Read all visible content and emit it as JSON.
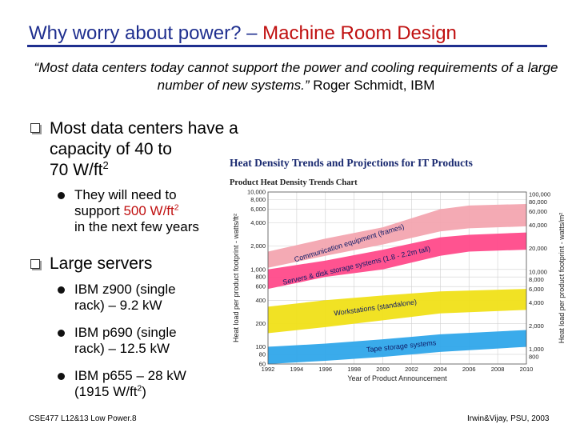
{
  "title": {
    "main": "Why worry about power? – ",
    "highlight": "Machine Room Design"
  },
  "quote": {
    "text": "“Most data centers today cannot support the power and cooling requirements of a large number of new systems.”",
    "attribution": " Roger Schmidt, IBM"
  },
  "bullets": [
    {
      "line1": "Most data centers have a",
      "line2": "capacity of 40 to",
      "line3": "70 W/ft",
      "sup": "2"
    },
    {
      "line1": "Large servers"
    }
  ],
  "sub_bullets_1": [
    {
      "line1": "They will need to",
      "line2_pre": "support ",
      "line2_val": "500 W/ft",
      "line2_sup": "2",
      "line3": "in the next few years"
    }
  ],
  "sub_bullets_2": [
    {
      "line1": "IBM z900 (single",
      "line2": "rack) – 9.2 kW"
    },
    {
      "line1": "IBM p690 (single",
      "line2": "rack) – 12.5 kW"
    },
    {
      "line1": "IBM p655 – 28 kW",
      "line2_pre": "(1915 W/ft",
      "line2_sup": "2",
      "line2_post": ")"
    }
  ],
  "footer": {
    "left": "CSE477 L12&13 Low Power.8",
    "right": "Irwin&Vijay, PSU, 2003"
  },
  "chart_data": {
    "type": "area",
    "title": "Heat Density Trends and Projections for IT Products",
    "subtitle": "Product Heat Density Trends Chart",
    "xlabel": "Year of Product Announcement",
    "ylabel_left": "Heat load per product footprint - watts/ft²",
    "ylabel_right": "Heat load per product footprint - watts/m²",
    "yscale": "log",
    "xlim": [
      1992,
      2010
    ],
    "x_ticks": [
      "1992",
      "1994",
      "1996",
      "1998",
      "2000",
      "2002",
      "2004",
      "2006",
      "2008",
      "2010"
    ],
    "left_ticks": [
      {
        "v": 10000,
        "label": "10,000"
      },
      {
        "v": 8000,
        "label": "8,000"
      },
      {
        "v": 6000,
        "label": "6,000"
      },
      {
        "v": 4000,
        "label": "4,000"
      },
      {
        "v": 2000,
        "label": "2,000"
      },
      {
        "v": 1000,
        "label": "1,000"
      },
      {
        "v": 800,
        "label": "800"
      },
      {
        "v": 600,
        "label": "600"
      },
      {
        "v": 400,
        "label": "400"
      },
      {
        "v": 200,
        "label": "200"
      },
      {
        "v": 100,
        "label": "100"
      },
      {
        "v": 80,
        "label": "80"
      },
      {
        "v": 60,
        "label": "60"
      }
    ],
    "right_ticks": [
      {
        "v": 9290,
        "label": "100,000"
      },
      {
        "v": 7432,
        "label": "80,000"
      },
      {
        "v": 5574,
        "label": "60,000"
      },
      {
        "v": 3716,
        "label": "40,000"
      },
      {
        "v": 1858,
        "label": "20,000"
      },
      {
        "v": 929,
        "label": "10,000"
      },
      {
        "v": 743,
        "label": "8,000"
      },
      {
        "v": 557,
        "label": "6,000"
      },
      {
        "v": 372,
        "label": "4,000"
      },
      {
        "v": 186,
        "label": "2,000"
      },
      {
        "v": 93,
        "label": "1,000"
      },
      {
        "v": 74,
        "label": "800"
      }
    ],
    "series": [
      {
        "name": "Communication equipment (frames)",
        "color": "#f3a5b0",
        "x": [
          1992,
          1996,
          2000,
          2004,
          2006,
          2010
        ],
        "upper": [
          1700,
          2500,
          3500,
          6000,
          6700,
          7000
        ],
        "lower": [
          1050,
          1500,
          2100,
          3100,
          3400,
          3600
        ]
      },
      {
        "name": "Servers & disk storage systems (1.8 - 2.2m tall)",
        "color": "#ff4a8a",
        "x": [
          1992,
          1996,
          2000,
          2004,
          2006,
          2010
        ],
        "upper": [
          1000,
          1300,
          1800,
          2600,
          2800,
          3000
        ],
        "lower": [
          560,
          800,
          1000,
          1500,
          1700,
          1800
        ]
      },
      {
        "name": "Workstations (standalone)",
        "color": "#f0e018",
        "x": [
          1992,
          1996,
          2000,
          2004,
          2010
        ],
        "upper": [
          330,
          400,
          460,
          520,
          560
        ],
        "lower": [
          150,
          180,
          220,
          270,
          300
        ]
      },
      {
        "name": "Tape storage systems",
        "color": "#2fa7ea",
        "x": [
          1992,
          1996,
          2000,
          2004,
          2010
        ],
        "upper": [
          100,
          110,
          125,
          145,
          165
        ],
        "lower": [
          60,
          66,
          74,
          86,
          100
        ]
      }
    ]
  }
}
